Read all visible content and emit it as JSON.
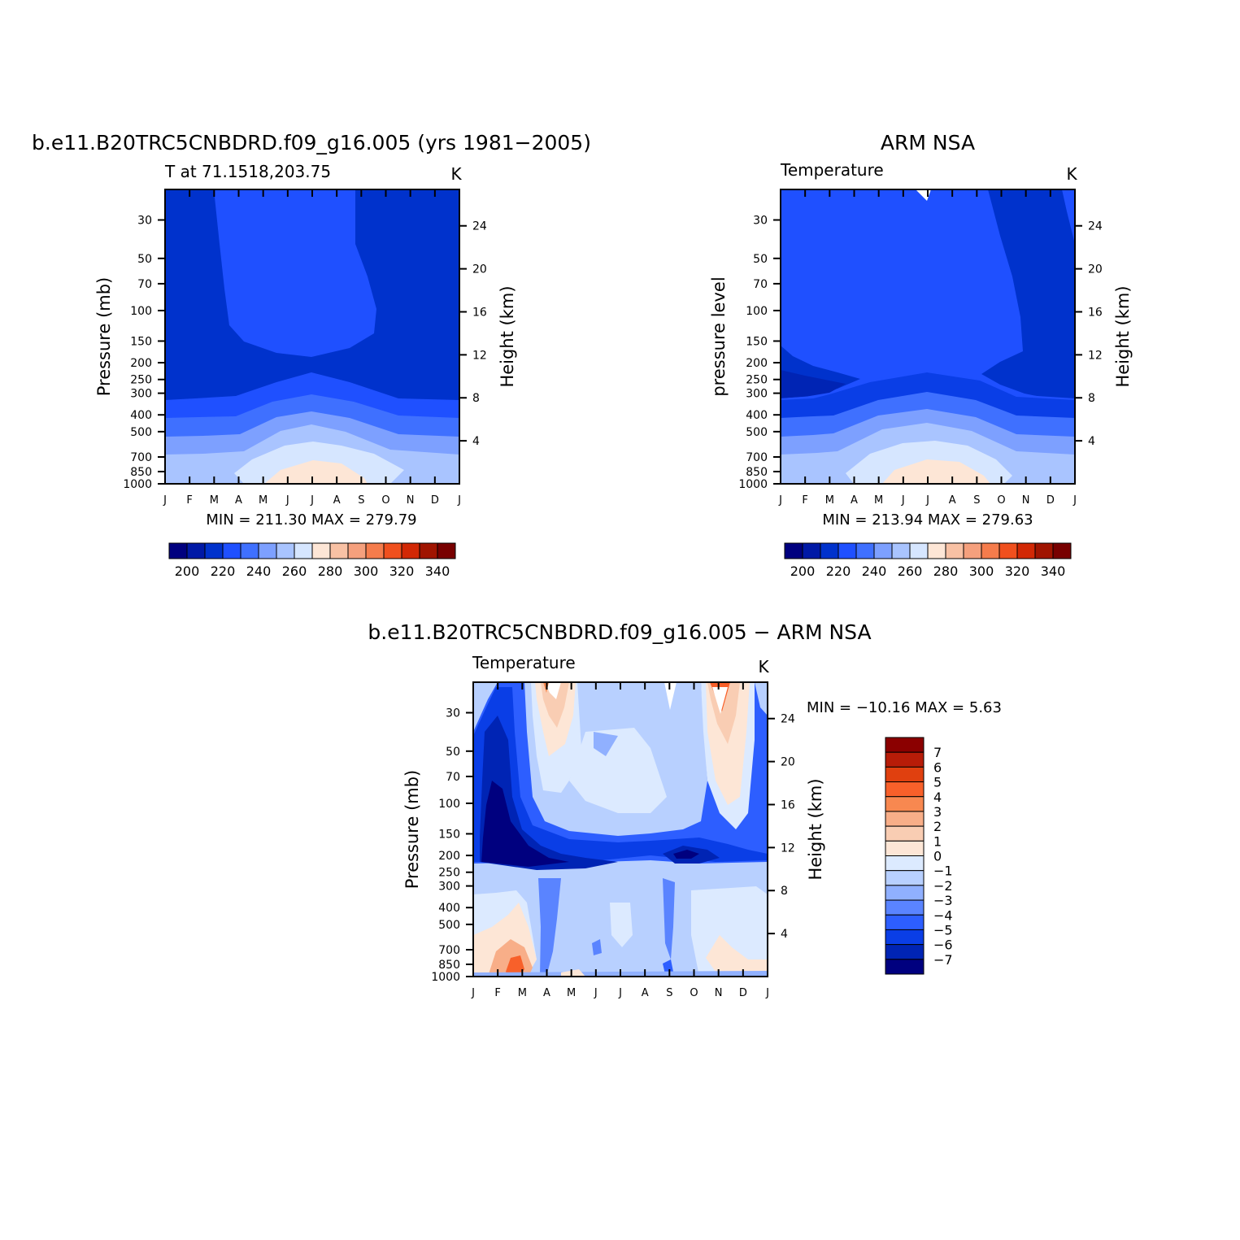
{
  "months": [
    "J",
    "F",
    "M",
    "A",
    "M",
    "J",
    "J",
    "A",
    "S",
    "O",
    "N",
    "D",
    "J"
  ],
  "pressure_ticks": [
    30,
    50,
    70,
    100,
    150,
    200,
    250,
    300,
    400,
    500,
    700,
    850,
    1000
  ],
  "height_ticks": [
    4,
    8,
    12,
    16,
    20,
    24
  ],
  "panels": [
    {
      "id": "model",
      "title": "b.e11.B20TRC5CNBDRD.f09_g16.005 (yrs 1981−2005)",
      "subtitle": "T at 71.1518,203.75",
      "units": "K",
      "ylabel_left": "Pressure (mb)",
      "ylabel_right": "Height (km)",
      "minmax": "MIN = 211.30 MAX = 279.79"
    },
    {
      "id": "obs",
      "title": "ARM NSA",
      "subtitle": "Temperature",
      "units": "K",
      "ylabel_left": "pressure level",
      "ylabel_right": "Height (km)",
      "minmax": "MIN = 213.94 MAX = 279.63"
    },
    {
      "id": "diff",
      "title": "b.e11.B20TRC5CNBDRD.f09_g16.005 − ARM NSA",
      "subtitle": "Temperature",
      "units": "K",
      "ylabel_left": "Pressure (mb)",
      "ylabel_right": "Height (km)",
      "minmax": "MIN = −10.16 MAX =    5.63"
    }
  ],
  "colorbar_abs": {
    "labels": [
      "200",
      "220",
      "240",
      "260",
      "280",
      "300",
      "320",
      "340"
    ],
    "colors": [
      "#00007f",
      "#0019a6",
      "#0032cc",
      "#1f50ff",
      "#3f70ff",
      "#7da0ff",
      "#a9c4ff",
      "#d6e6ff",
      "#fde6d6",
      "#f8c1a4",
      "#f5a07d",
      "#f57c4c",
      "#f0501e",
      "#d22805",
      "#a01400",
      "#780000"
    ]
  },
  "colorbar_diff": {
    "labels": [
      "7",
      "6",
      "5",
      "4",
      "3",
      "2",
      "1",
      "0",
      "−1",
      "−2",
      "−3",
      "−4",
      "−5",
      "−6",
      "−7"
    ],
    "colors": [
      "#8b0000",
      "#b71c08",
      "#e0400f",
      "#f8602a",
      "#f88850",
      "#f8ae88",
      "#f9cdb3",
      "#fde6d6",
      "#dceaff",
      "#b8d0ff",
      "#90b0ff",
      "#5a84ff",
      "#2d5eff",
      "#0a3ee6",
      "#0024b4",
      "#00007f"
    ]
  },
  "chart_data": [
    {
      "type": "heatmap",
      "title": "b.e11.B20TRC5CNBDRD.f09_g16.005 (yrs 1981−2005)",
      "subtitle": "T at 71.1518,203.75",
      "xlabel": "",
      "ylabel": "Pressure (mb)",
      "y2label": "Height (km)",
      "x": [
        "J",
        "F",
        "M",
        "A",
        "M",
        "J",
        "J",
        "A",
        "S",
        "O",
        "N",
        "D",
        "J"
      ],
      "y": [
        1000,
        850,
        700,
        500,
        400,
        300,
        250,
        200,
        150,
        100,
        70,
        50,
        30
      ],
      "units": "K",
      "min": 211.3,
      "max": 279.79,
      "levels": [
        195,
        200,
        205,
        210,
        215,
        220,
        225,
        230,
        235,
        240,
        245,
        250,
        255,
        260,
        265,
        270,
        275,
        280
      ]
    },
    {
      "type": "heatmap",
      "title": "ARM NSA",
      "subtitle": "Temperature",
      "xlabel": "",
      "ylabel": "pressure level",
      "y2label": "Height (km)",
      "x": [
        "J",
        "F",
        "M",
        "A",
        "M",
        "J",
        "J",
        "A",
        "S",
        "O",
        "N",
        "D",
        "J"
      ],
      "y": [
        1000,
        850,
        700,
        500,
        400,
        300,
        250,
        200,
        150,
        100,
        70,
        50,
        30
      ],
      "units": "K",
      "min": 213.94,
      "max": 279.63
    },
    {
      "type": "heatmap",
      "title": "b.e11.B20TRC5CNBDRD.f09_g16.005 − ARM NSA",
      "subtitle": "Temperature",
      "xlabel": "",
      "ylabel": "Pressure (mb)",
      "y2label": "Height (km)",
      "x": [
        "J",
        "F",
        "M",
        "A",
        "M",
        "J",
        "J",
        "A",
        "S",
        "O",
        "N",
        "D",
        "J"
      ],
      "y": [
        1000,
        850,
        700,
        500,
        400,
        300,
        250,
        200,
        150,
        100,
        70,
        50,
        30
      ],
      "units": "K",
      "min": -10.16,
      "max": 5.63,
      "levels": [
        -7,
        -6,
        -5,
        -4,
        -3,
        -2,
        -1,
        0,
        1,
        2,
        3,
        4,
        5,
        6,
        7
      ]
    }
  ]
}
